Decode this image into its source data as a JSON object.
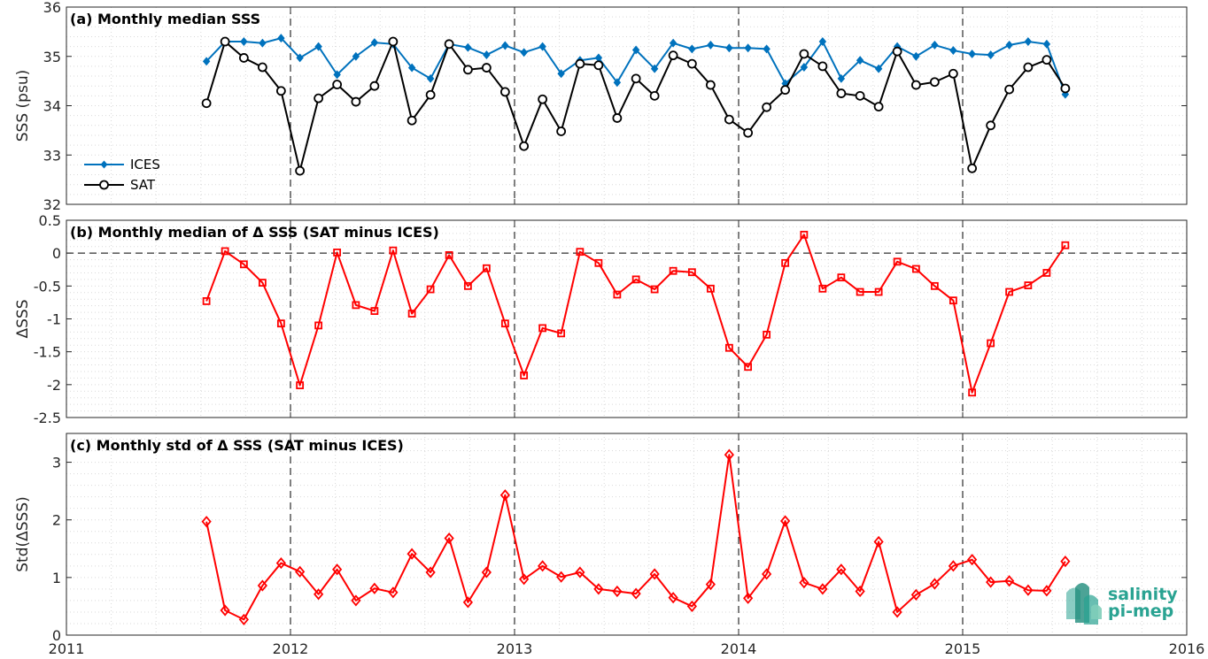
{
  "x_ticks": [
    "2011",
    "2012",
    "2013",
    "2014",
    "2015",
    "2016"
  ],
  "logo": {
    "line1": "salinity",
    "line2": "pi-mep",
    "color": "#2aa392"
  },
  "colors": {
    "ices": "#0072bd",
    "sat": "#000000",
    "diff": "#ff0000",
    "grid": "#d9d9d9"
  },
  "chart_data": [
    {
      "type": "line",
      "title": "(a) Monthly median SSS",
      "ylabel": "SSS (psu)",
      "xlim": [
        2011,
        2016
      ],
      "ylim": [
        32,
        36
      ],
      "yticks": [
        "32",
        "33",
        "34",
        "35",
        "36"
      ],
      "grid": true,
      "legend_position": "bottom-left",
      "x": [
        2011.625,
        2011.708,
        2011.792,
        2011.875,
        2011.958,
        2012.042,
        2012.125,
        2012.208,
        2012.292,
        2012.375,
        2012.458,
        2012.542,
        2012.625,
        2012.708,
        2012.792,
        2012.875,
        2012.958,
        2013.042,
        2013.125,
        2013.208,
        2013.292,
        2013.375,
        2013.458,
        2013.542,
        2013.625,
        2013.708,
        2013.792,
        2013.875,
        2013.958,
        2014.042,
        2014.125,
        2014.208,
        2014.292,
        2014.375,
        2014.458,
        2014.542,
        2014.625,
        2014.708,
        2014.792,
        2014.875,
        2014.958,
        2015.042,
        2015.125,
        2015.208,
        2015.292,
        2015.375,
        2015.458
      ],
      "series": [
        {
          "name": "ICES",
          "marker": "diamond",
          "values": [
            34.9,
            35.3,
            35.3,
            35.27,
            35.37,
            34.97,
            35.2,
            34.63,
            35.0,
            35.28,
            35.25,
            34.77,
            34.55,
            35.25,
            35.18,
            35.03,
            35.22,
            35.08,
            35.2,
            34.65,
            34.92,
            34.97,
            34.47,
            35.13,
            34.75,
            35.27,
            35.15,
            35.23,
            35.17,
            35.17,
            35.15,
            34.45,
            34.78,
            35.3,
            34.55,
            34.92,
            34.75,
            35.2,
            35.0,
            35.23,
            35.12,
            35.05,
            35.03,
            35.23,
            35.3,
            35.25,
            34.23
          ]
        },
        {
          "name": "SAT",
          "marker": "circle",
          "values": [
            34.05,
            35.3,
            34.97,
            34.78,
            34.3,
            32.68,
            34.15,
            34.43,
            34.08,
            34.4,
            35.3,
            33.7,
            34.22,
            35.25,
            34.73,
            34.77,
            34.28,
            33.18,
            34.13,
            33.48,
            34.85,
            34.82,
            33.75,
            34.55,
            34.2,
            35.02,
            34.85,
            34.42,
            33.72,
            33.45,
            33.97,
            34.32,
            35.05,
            34.8,
            34.25,
            34.2,
            33.98,
            35.1,
            34.42,
            34.48,
            34.65,
            32.73,
            33.6,
            34.33,
            34.78,
            34.93,
            34.35
          ]
        }
      ]
    },
    {
      "type": "line",
      "title": "(b) Monthly median of Δ SSS (SAT minus ICES)",
      "ylabel": "ΔSSS",
      "xlim": [
        2011,
        2016
      ],
      "ylim": [
        -2.5,
        0.5
      ],
      "yticks": [
        "-2.5",
        "-2",
        "-1.5",
        "-1",
        "-0.5",
        "0",
        "0.5"
      ],
      "grid": true,
      "reference_line": 0,
      "x": [
        2011.625,
        2011.708,
        2011.792,
        2011.875,
        2011.958,
        2012.042,
        2012.125,
        2012.208,
        2012.292,
        2012.375,
        2012.458,
        2012.542,
        2012.625,
        2012.708,
        2012.792,
        2012.875,
        2012.958,
        2013.042,
        2013.125,
        2013.208,
        2013.292,
        2013.375,
        2013.458,
        2013.542,
        2013.625,
        2013.708,
        2013.792,
        2013.875,
        2013.958,
        2014.042,
        2014.125,
        2014.208,
        2014.292,
        2014.375,
        2014.458,
        2014.542,
        2014.625,
        2014.708,
        2014.792,
        2014.875,
        2014.958,
        2015.042,
        2015.125,
        2015.208,
        2015.292,
        2015.375,
        2015.458
      ],
      "series": [
        {
          "marker": "square",
          "values": [
            -0.73,
            0.03,
            -0.17,
            -0.45,
            -1.07,
            -2.01,
            -1.1,
            0.01,
            -0.79,
            -0.88,
            0.04,
            -0.92,
            -0.55,
            -0.03,
            -0.5,
            -0.23,
            -1.07,
            -1.86,
            -1.14,
            -1.22,
            0.02,
            -0.15,
            -0.63,
            -0.4,
            -0.55,
            -0.27,
            -0.29,
            -0.54,
            -1.44,
            -1.73,
            -1.24,
            -0.15,
            0.28,
            -0.54,
            -0.37,
            -0.59,
            -0.59,
            -0.13,
            -0.24,
            -0.5,
            -0.72,
            -2.12,
            -1.37,
            -0.59,
            -0.49,
            -0.3,
            0.12
          ]
        }
      ]
    },
    {
      "type": "line",
      "title": "(c) Monthly std of Δ SSS (SAT minus ICES)",
      "ylabel": "Std(ΔSSS)",
      "xlim": [
        2011,
        2016
      ],
      "ylim": [
        0,
        3.5
      ],
      "yticks": [
        "0",
        "1",
        "2",
        "3"
      ],
      "grid": true,
      "x": [
        2011.625,
        2011.708,
        2011.792,
        2011.875,
        2011.958,
        2012.042,
        2012.125,
        2012.208,
        2012.292,
        2012.375,
        2012.458,
        2012.542,
        2012.625,
        2012.708,
        2012.792,
        2012.875,
        2012.958,
        2013.042,
        2013.125,
        2013.208,
        2013.292,
        2013.375,
        2013.458,
        2013.542,
        2013.625,
        2013.708,
        2013.792,
        2013.875,
        2013.958,
        2014.042,
        2014.125,
        2014.208,
        2014.292,
        2014.375,
        2014.458,
        2014.542,
        2014.625,
        2014.708,
        2014.792,
        2014.875,
        2014.958,
        2015.042,
        2015.125,
        2015.208,
        2015.292,
        2015.375,
        2015.458
      ],
      "series": [
        {
          "marker": "diamond",
          "values": [
            1.97,
            0.43,
            0.27,
            0.86,
            1.25,
            1.1,
            0.71,
            1.14,
            0.6,
            0.81,
            0.74,
            1.41,
            1.09,
            1.68,
            0.57,
            1.09,
            2.43,
            0.97,
            1.2,
            1.01,
            1.09,
            0.8,
            0.76,
            0.72,
            1.06,
            0.65,
            0.5,
            0.88,
            3.13,
            0.64,
            1.06,
            1.98,
            0.91,
            0.8,
            1.14,
            0.76,
            1.62,
            0.4,
            0.7,
            0.89,
            1.2,
            1.31,
            0.92,
            0.94,
            0.78,
            0.77,
            1.28
          ]
        }
      ]
    }
  ]
}
